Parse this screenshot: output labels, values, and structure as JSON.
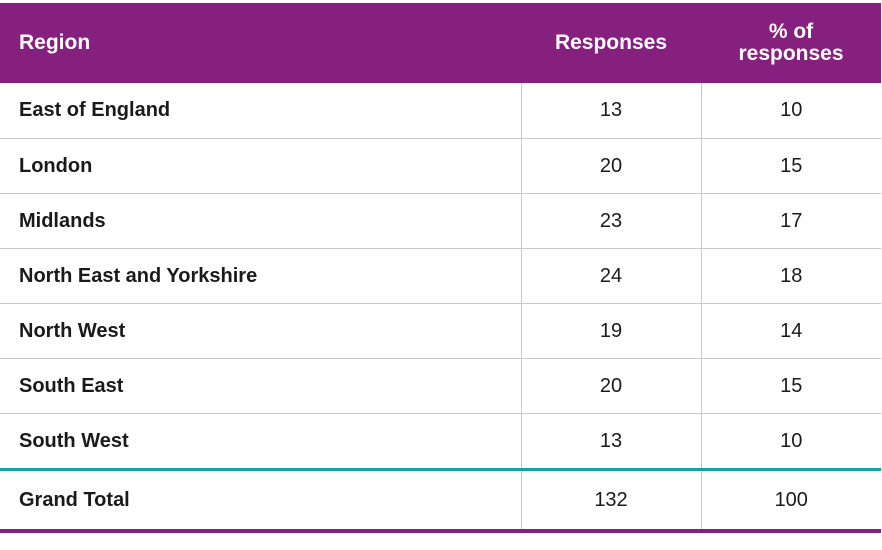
{
  "table": {
    "headers": {
      "region": "Region",
      "responses": "Responses",
      "percent": "% of responses"
    },
    "rows": [
      {
        "region": "East of England",
        "responses": "13",
        "percent": "10"
      },
      {
        "region": "London",
        "responses": "20",
        "percent": "15"
      },
      {
        "region": "Midlands",
        "responses": "23",
        "percent": "17"
      },
      {
        "region": "North East and Yorkshire",
        "responses": "24",
        "percent": "18"
      },
      {
        "region": "North West",
        "responses": "19",
        "percent": "14"
      },
      {
        "region": "South East",
        "responses": "20",
        "percent": "15"
      },
      {
        "region": "South West",
        "responses": "13",
        "percent": "10"
      }
    ],
    "total": {
      "region": "Grand Total",
      "responses": "132",
      "percent": "100"
    }
  },
  "colors": {
    "header_bg": "#86207f",
    "header_text": "#ffffff",
    "total_separator": "#14a3a3",
    "bottom_rule": "#86207f"
  }
}
